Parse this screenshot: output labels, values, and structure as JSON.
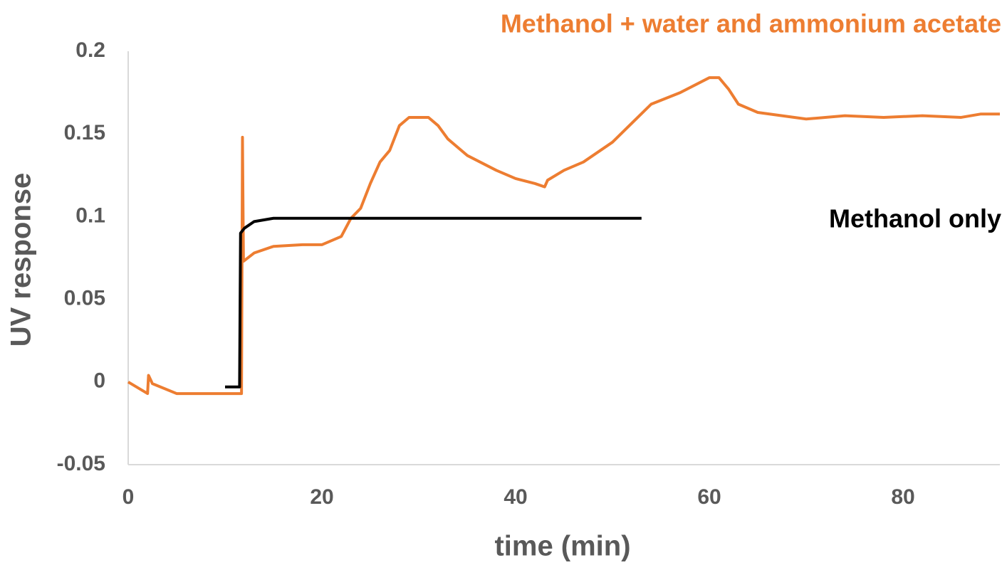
{
  "chart_data": {
    "type": "line",
    "xlabel": "time (min)",
    "ylabel": "UV response",
    "xlim": [
      0,
      90
    ],
    "xticks": [
      0,
      20,
      40,
      60,
      80
    ],
    "ylim": [
      -0.05,
      0.2
    ],
    "yticks": [
      -0.05,
      0,
      0.05,
      0.1,
      0.15,
      0.2
    ],
    "grid": false,
    "series": [
      {
        "name": "Methanol + water and ammonium acetate",
        "color": "#ed7d31",
        "x": [
          0,
          2,
          2.1,
          2.5,
          5,
          8,
          11.7,
          11.8,
          11.9,
          13,
          15,
          18,
          20,
          22,
          23,
          24,
          25,
          26,
          27,
          28,
          29,
          31,
          32,
          33,
          35,
          38,
          40,
          42,
          43,
          43.3,
          45,
          47,
          50,
          54,
          57,
          60,
          61,
          62,
          63,
          65,
          70,
          74,
          78,
          82,
          86,
          88,
          90
        ],
        "values": [
          0,
          -0.007,
          0.004,
          -0.001,
          -0.007,
          -0.007,
          -0.007,
          0.148,
          0.073,
          0.078,
          0.082,
          0.083,
          0.083,
          0.088,
          0.099,
          0.105,
          0.12,
          0.133,
          0.14,
          0.155,
          0.16,
          0.16,
          0.155,
          0.147,
          0.137,
          0.128,
          0.123,
          0.12,
          0.118,
          0.122,
          0.128,
          0.133,
          0.145,
          0.168,
          0.175,
          0.184,
          0.184,
          0.177,
          0.168,
          0.163,
          0.159,
          0.161,
          0.16,
          0.161,
          0.16,
          0.162,
          0.162
        ]
      },
      {
        "name": "Methanol only",
        "color": "#000000",
        "x": [
          10,
          11.5,
          11.6,
          12,
          13,
          15,
          20,
          30,
          40,
          53
        ],
        "values": [
          -0.003,
          -0.003,
          0.09,
          0.093,
          0.097,
          0.099,
          0.099,
          0.099,
          0.099,
          0.099
        ]
      }
    ]
  }
}
